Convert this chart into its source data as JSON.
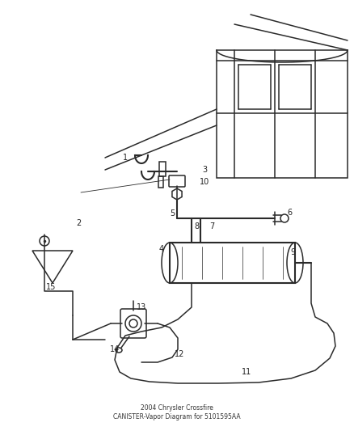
{
  "title": "2004 Chrysler Crossfire\nCANISTER-Vapor Diagram for 5101595AA",
  "bg_color": "#ffffff",
  "line_color": "#2a2a2a",
  "label_color": "#222222",
  "fig_width": 4.38,
  "fig_height": 5.33,
  "dpi": 100
}
